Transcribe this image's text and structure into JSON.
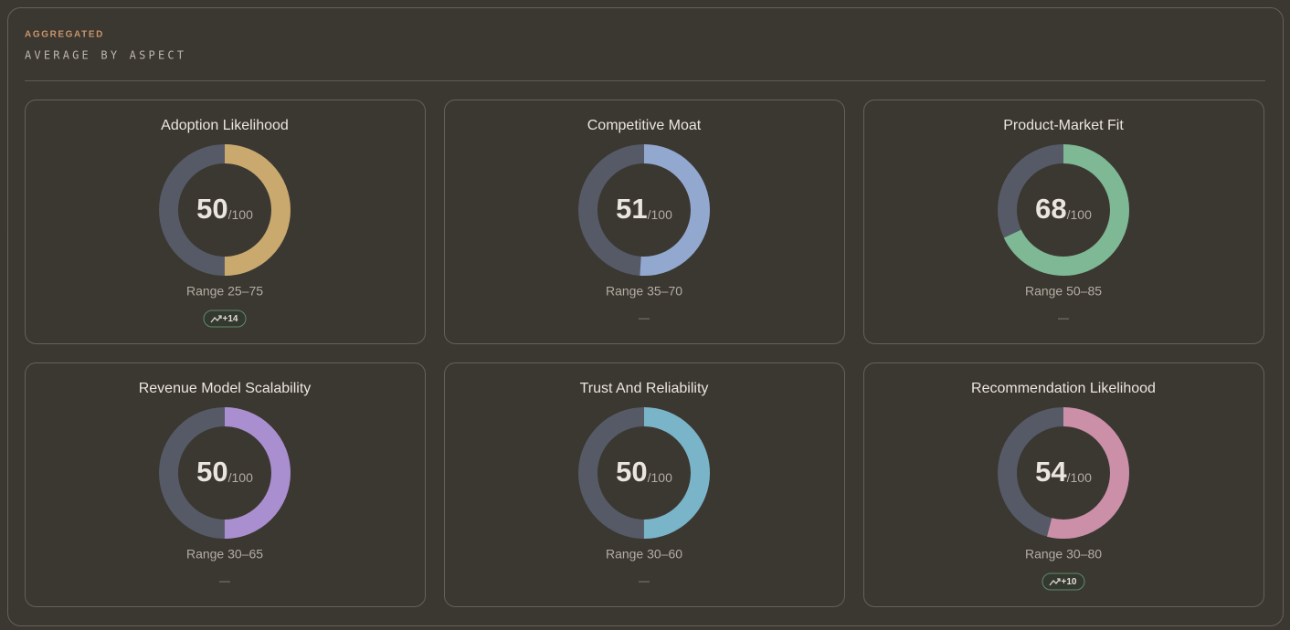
{
  "header": {
    "eyebrow": "AGGREGATED",
    "title": "AVERAGE BY ASPECT"
  },
  "scale_max": 100,
  "max_label": "/100",
  "cards": [
    {
      "title": "Adoption Likelihood",
      "value": 50,
      "range": "Range 25–75",
      "delta": "+14",
      "color": "#c9a96e"
    },
    {
      "title": "Competitive Moat",
      "value": 51,
      "range": "Range 35–70",
      "delta": "—",
      "color": "#93a8cf"
    },
    {
      "title": "Product-Market Fit",
      "value": 68,
      "range": "Range 50–85",
      "delta": "—",
      "color": "#7fb895"
    },
    {
      "title": "Revenue Model Scalability",
      "value": 50,
      "range": "Range 30–65",
      "delta": "—",
      "color": "#a98fd0"
    },
    {
      "title": "Trust And Reliability",
      "value": 50,
      "range": "Range 30–60",
      "delta": "—",
      "color": "#7ab4c8"
    },
    {
      "title": "Recommendation Likelihood",
      "value": 54,
      "range": "Range 30–80",
      "delta": "+10",
      "color": "#cc8fa8"
    }
  ]
}
